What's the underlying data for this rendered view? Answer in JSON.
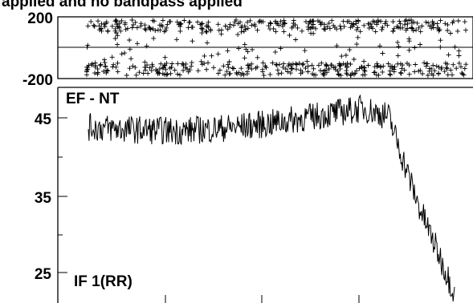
{
  "title": "applied and no bandpass applied",
  "chart_data": [
    {
      "type": "scatter",
      "marker": "+",
      "ylim": [
        -200,
        200
      ],
      "yticks": [
        200,
        -200
      ],
      "reference_line_y": 0,
      "point_count": 620,
      "grid": false
    },
    {
      "type": "line",
      "annotations": [
        "EF - NT",
        "IF 1(RR)"
      ],
      "ylim": [
        20,
        50
      ],
      "yticks": [
        45,
        35,
        25
      ],
      "trend": {
        "x_fraction": [
          0,
          0.12,
          0.25,
          0.4,
          0.5,
          0.62,
          0.75,
          0.82,
          0.9,
          1.0
        ],
        "value": [
          43.8,
          43.5,
          43.3,
          43.8,
          44.3,
          45.2,
          46.2,
          45.2,
          34.0,
          22.6
        ]
      },
      "grid": false
    }
  ]
}
